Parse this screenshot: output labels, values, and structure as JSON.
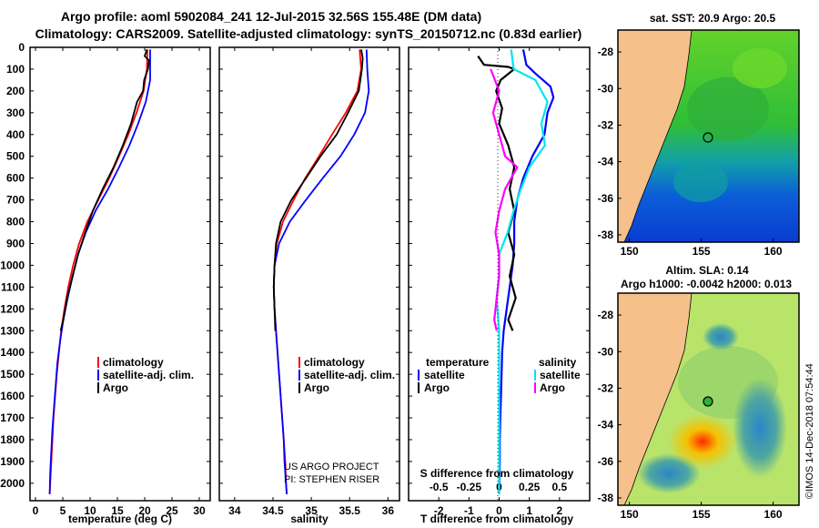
{
  "title_line1": "Argo profile: aoml 5902084_241 12-Jul-2015 32.56S 155.48E (DM data)",
  "title_line2": "Climatology: CARS2009. Satellite-adjusted climatology: synTS_20150712.nc (0.83d earlier)",
  "sst_title": "sat. SST: 20.9 Argo: 20.5",
  "sla_title1": "Altim. SLA: 0.14",
  "sla_title2": "Argo h1000: -0.0042 h2000: 0.013",
  "credit1": "US ARGO PROJECT",
  "credit2": "PI: STEPHEN RISER",
  "imos_stamp": "©IMOS 14-Dec-2018 07:54:44",
  "colors": {
    "climatology": "#ff0000",
    "satellite": "#0000ff",
    "argo": "#000000",
    "sal_satellite": "#00e5ee",
    "sal_argo": "#ff00ff"
  },
  "chart_data": [
    {
      "type": "line",
      "xlabel": "temperature (deg C)",
      "ylabel": "",
      "xlim": [
        -1,
        32
      ],
      "ylim": [
        2080,
        0
      ],
      "xticks": [
        0,
        5,
        10,
        15,
        20,
        25,
        30
      ],
      "yticks": [
        0,
        100,
        200,
        300,
        400,
        500,
        600,
        700,
        800,
        900,
        1000,
        1100,
        1200,
        1300,
        1400,
        1500,
        1600,
        1700,
        1800,
        1900,
        2000
      ],
      "legend": [
        "climatology",
        "satellite-adj. clim.",
        "Argo"
      ],
      "series": [
        {
          "name": "climatology",
          "points": [
            [
              20.5,
              10
            ],
            [
              20.4,
              100
            ],
            [
              19.8,
              200
            ],
            [
              18.5,
              300
            ],
            [
              17.0,
              400
            ],
            [
              15.3,
              500
            ],
            [
              13.5,
              600
            ],
            [
              11.5,
              700
            ],
            [
              9.5,
              800
            ],
            [
              8.0,
              900
            ],
            [
              6.9,
              1000
            ],
            [
              6.0,
              1100
            ],
            [
              5.3,
              1200
            ],
            [
              4.7,
              1300
            ],
            [
              4.3,
              1400
            ],
            [
              3.9,
              1500
            ],
            [
              3.6,
              1600
            ],
            [
              3.3,
              1700
            ],
            [
              3.1,
              1800
            ],
            [
              2.9,
              1900
            ],
            [
              2.7,
              2000
            ],
            [
              2.6,
              2050
            ]
          ]
        },
        {
          "name": "satellite-adj. clim.",
          "points": [
            [
              21.0,
              10
            ],
            [
              21.0,
              100
            ],
            [
              21.0,
              150
            ],
            [
              20.2,
              250
            ],
            [
              18.8,
              350
            ],
            [
              17.2,
              450
            ],
            [
              15.3,
              550
            ],
            [
              13.3,
              650
            ],
            [
              11.0,
              750
            ],
            [
              9.2,
              850
            ],
            [
              7.8,
              950
            ],
            [
              6.8,
              1050
            ],
            [
              5.9,
              1150
            ],
            [
              5.1,
              1250
            ],
            [
              4.5,
              1350
            ],
            [
              4.0,
              1450
            ],
            [
              3.7,
              1550
            ],
            [
              3.4,
              1650
            ],
            [
              3.1,
              1750
            ],
            [
              2.9,
              1850
            ],
            [
              2.7,
              1950
            ],
            [
              2.6,
              2050
            ]
          ]
        },
        {
          "name": "Argo",
          "points": [
            [
              20.4,
              10
            ],
            [
              20.0,
              40
            ],
            [
              20.8,
              60
            ],
            [
              20.6,
              100
            ],
            [
              19.9,
              150
            ],
            [
              19.7,
              200
            ],
            [
              18.6,
              250
            ],
            [
              17.5,
              350
            ],
            [
              16.0,
              450
            ],
            [
              14.3,
              550
            ],
            [
              12.3,
              650
            ],
            [
              10.5,
              750
            ],
            [
              9.1,
              850
            ],
            [
              7.8,
              950
            ],
            [
              6.8,
              1050
            ],
            [
              5.8,
              1150
            ],
            [
              5.1,
              1250
            ],
            [
              4.6,
              1300
            ]
          ]
        }
      ]
    },
    {
      "type": "line",
      "xlabel": "salinity",
      "ylabel": "",
      "xlim": [
        33.8,
        36.15
      ],
      "ylim": [
        2080,
        0
      ],
      "xticks": [
        34,
        34.5,
        35,
        35.5,
        36
      ],
      "xticklabels": [
        "34",
        "34.5",
        "35",
        "35.5",
        "36"
      ],
      "legend": [
        "climatology",
        "satellite-adj. clim.",
        "Argo"
      ],
      "series": [
        {
          "name": "climatology",
          "points": [
            [
              35.63,
              10
            ],
            [
              35.65,
              100
            ],
            [
              35.6,
              200
            ],
            [
              35.45,
              300
            ],
            [
              35.27,
              400
            ],
            [
              35.1,
              500
            ],
            [
              34.92,
              600
            ],
            [
              34.77,
              700
            ],
            [
              34.63,
              800
            ],
            [
              34.55,
              900
            ],
            [
              34.52,
              1000
            ],
            [
              34.51,
              1100
            ],
            [
              34.52,
              1200
            ],
            [
              34.54,
              1300
            ],
            [
              34.56,
              1400
            ],
            [
              34.58,
              1500
            ],
            [
              34.6,
              1600
            ],
            [
              34.62,
              1700
            ],
            [
              34.64,
              1800
            ],
            [
              34.66,
              1900
            ],
            [
              34.67,
              2000
            ],
            [
              34.68,
              2050
            ]
          ]
        },
        {
          "name": "satellite-adj. clim.",
          "points": [
            [
              35.72,
              10
            ],
            [
              35.73,
              100
            ],
            [
              35.75,
              200
            ],
            [
              35.7,
              300
            ],
            [
              35.56,
              400
            ],
            [
              35.38,
              500
            ],
            [
              35.15,
              600
            ],
            [
              34.93,
              700
            ],
            [
              34.72,
              800
            ],
            [
              34.58,
              900
            ],
            [
              34.52,
              1000
            ],
            [
              34.51,
              1100
            ],
            [
              34.52,
              1200
            ],
            [
              34.54,
              1300
            ],
            [
              34.56,
              1400
            ],
            [
              34.58,
              1500
            ],
            [
              34.6,
              1600
            ],
            [
              34.62,
              1700
            ],
            [
              34.64,
              1800
            ],
            [
              34.65,
              1900
            ],
            [
              34.67,
              2000
            ],
            [
              34.68,
              2050
            ]
          ]
        },
        {
          "name": "Argo",
          "points": [
            [
              35.65,
              10
            ],
            [
              35.67,
              50
            ],
            [
              35.66,
              100
            ],
            [
              35.62,
              200
            ],
            [
              35.48,
              300
            ],
            [
              35.33,
              400
            ],
            [
              35.12,
              500
            ],
            [
              34.93,
              600
            ],
            [
              34.74,
              700
            ],
            [
              34.6,
              800
            ],
            [
              34.54,
              900
            ],
            [
              34.52,
              1000
            ],
            [
              34.51,
              1100
            ],
            [
              34.52,
              1200
            ],
            [
              34.53,
              1300
            ]
          ]
        }
      ]
    },
    {
      "type": "line",
      "xlabel": "T difference from climatology",
      "xlabel2": "S difference from climatology",
      "ylabel": "",
      "xlim": [
        -3.0,
        3.0
      ],
      "ylim": [
        2080,
        0
      ],
      "xticks": [
        -2,
        -1,
        0,
        1,
        2
      ],
      "xticks2": [
        -0.5,
        -0.25,
        0,
        0.25,
        0.5
      ],
      "xticklabels2": [
        "-0.5",
        "-0.25",
        "0",
        "0.25",
        "0.5"
      ],
      "legend_headers": [
        "temperature",
        "salinity"
      ],
      "legend": [
        "satellite",
        "Argo",
        "satellite",
        "Argo"
      ],
      "series": [
        {
          "name": "T satellite",
          "points": [
            [
              0.8,
              10
            ],
            [
              0.9,
              80
            ],
            [
              1.2,
              120
            ],
            [
              1.7,
              180
            ],
            [
              1.8,
              230
            ],
            [
              1.6,
              300
            ],
            [
              1.5,
              400
            ],
            [
              1.1,
              500
            ],
            [
              0.8,
              600
            ],
            [
              0.6,
              700
            ],
            [
              0.5,
              800
            ],
            [
              0.5,
              900
            ],
            [
              0.45,
              1000
            ],
            [
              0.35,
              1100
            ],
            [
              0.25,
              1200
            ],
            [
              0.15,
              1300
            ],
            [
              0.1,
              1400
            ],
            [
              0.08,
              1500
            ],
            [
              0.06,
              1600
            ],
            [
              0.04,
              1700
            ],
            [
              0.02,
              1800
            ],
            [
              0.02,
              1900
            ],
            [
              0.01,
              2000
            ],
            [
              0.0,
              2050
            ]
          ]
        },
        {
          "name": "T Argo",
          "points": [
            [
              -0.7,
              40
            ],
            [
              -0.5,
              80
            ],
            [
              0.3,
              90
            ],
            [
              0.5,
              100
            ],
            [
              0.05,
              150
            ],
            [
              -0.1,
              200
            ],
            [
              0.1,
              280
            ],
            [
              0.0,
              350
            ],
            [
              0.3,
              450
            ],
            [
              0.5,
              550
            ],
            [
              0.35,
              650
            ],
            [
              0.5,
              750
            ],
            [
              0.3,
              850
            ],
            [
              0.5,
              950
            ],
            [
              0.35,
              1050
            ],
            [
              0.55,
              1150
            ],
            [
              0.3,
              1250
            ],
            [
              0.45,
              1300
            ]
          ]
        },
        {
          "name": "S satellite",
          "points": [
            [
              0.1,
              10
            ],
            [
              0.12,
              100
            ],
            [
              0.3,
              150
            ],
            [
              0.4,
              250
            ],
            [
              0.35,
              350
            ],
            [
              0.38,
              450
            ],
            [
              0.25,
              550
            ],
            [
              0.18,
              650
            ],
            [
              0.12,
              750
            ],
            [
              0.07,
              850
            ],
            [
              0.0,
              950
            ],
            [
              0.0,
              1050
            ],
            [
              -0.02,
              1150
            ],
            [
              0.0,
              1300
            ],
            [
              0.0,
              1500
            ],
            [
              0.0,
              1700
            ],
            [
              0.0,
              1900
            ],
            [
              0.0,
              2050
            ]
          ]
        },
        {
          "name": "S Argo",
          "points": [
            [
              -0.07,
              100
            ],
            [
              0.0,
              200
            ],
            [
              -0.05,
              300
            ],
            [
              0.0,
              400
            ],
            [
              0.05,
              500
            ],
            [
              0.15,
              550
            ],
            [
              0.05,
              650
            ],
            [
              0.0,
              750
            ],
            [
              -0.03,
              850
            ],
            [
              0.0,
              950
            ],
            [
              0.0,
              1050
            ],
            [
              -0.02,
              1150
            ],
            [
              -0.04,
              1250
            ],
            [
              -0.02,
              1300
            ]
          ]
        }
      ]
    },
    {
      "type": "heatmap",
      "title": "sat. SST: 20.9 Argo: 20.5",
      "xlim": [
        149.2,
        161.8
      ],
      "ylim": [
        -38.4,
        -26.8
      ],
      "xticks": [
        150,
        155,
        160
      ],
      "yticks": [
        -28,
        -30,
        -32,
        -34,
        -36,
        -38
      ],
      "marker": {
        "lon": 155.48,
        "lat": -32.56
      }
    },
    {
      "type": "heatmap",
      "title": "Altim. SLA: 0.14",
      "xlim": [
        149.2,
        161.8
      ],
      "ylim": [
        -38.4,
        -26.8
      ],
      "xticks": [
        150,
        155,
        160
      ],
      "yticks": [
        -28,
        -30,
        -32,
        -34,
        -36,
        -38
      ],
      "marker": {
        "lon": 155.48,
        "lat": -32.56
      }
    }
  ]
}
